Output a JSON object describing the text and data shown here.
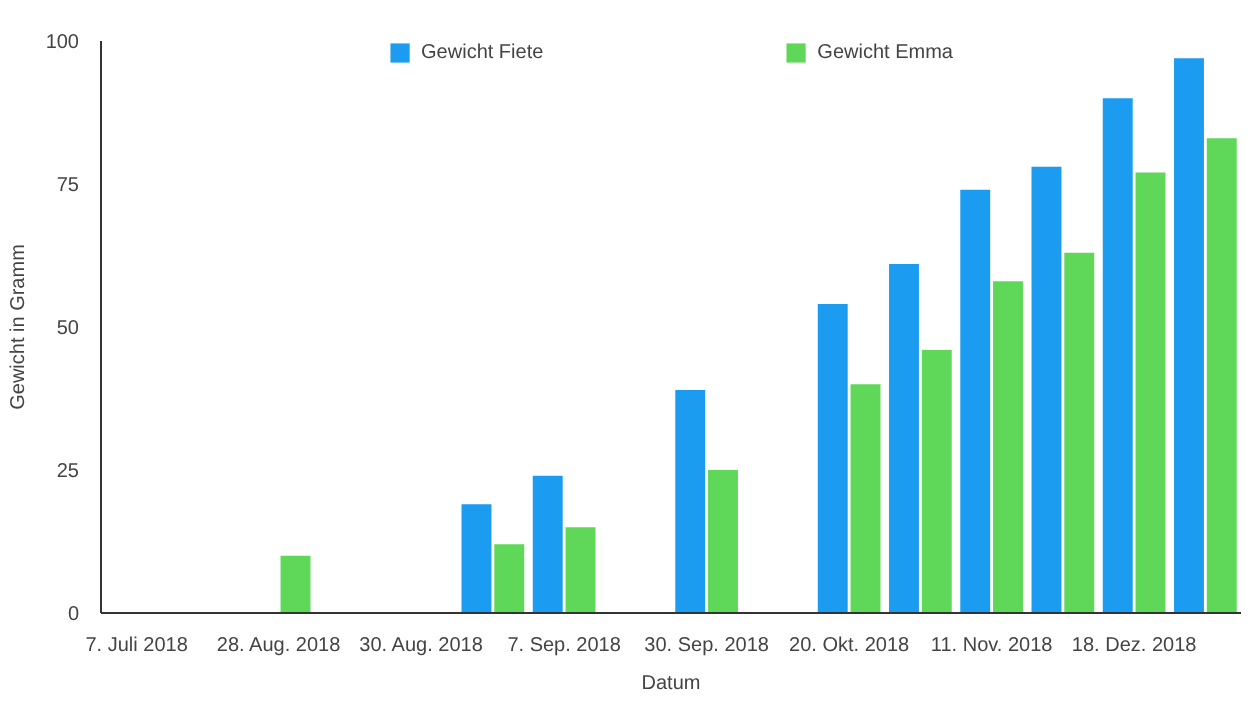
{
  "chart_data": {
    "type": "bar",
    "xlabel": "Datum",
    "ylabel": "Gewicht in Gramm",
    "categories": [
      "7. Juli 2018",
      null,
      "28. Aug. 2018",
      null,
      "30. Aug. 2018",
      null,
      "7. Sep. 2018",
      null,
      "30. Sep. 2018",
      null,
      "20. Okt. 2018",
      null,
      "11. Nov. 2018",
      null,
      "18. Dez. 2018",
      null
    ],
    "series": [
      {
        "name": "Gewicht Fiete",
        "color": "#1c9cf0",
        "values": [
          null,
          null,
          null,
          null,
          null,
          19,
          24,
          null,
          39,
          null,
          54,
          61,
          74,
          78,
          90,
          97
        ]
      },
      {
        "name": "Gewicht Emma",
        "color": "#5fd85a",
        "values": [
          null,
          null,
          10,
          null,
          null,
          12,
          15,
          null,
          25,
          null,
          40,
          46,
          58,
          63,
          77,
          83
        ]
      }
    ],
    "ylim": [
      0,
      100
    ],
    "yticks": [
      0,
      25,
      50,
      75,
      100
    ],
    "grid": false,
    "legend": "top"
  }
}
